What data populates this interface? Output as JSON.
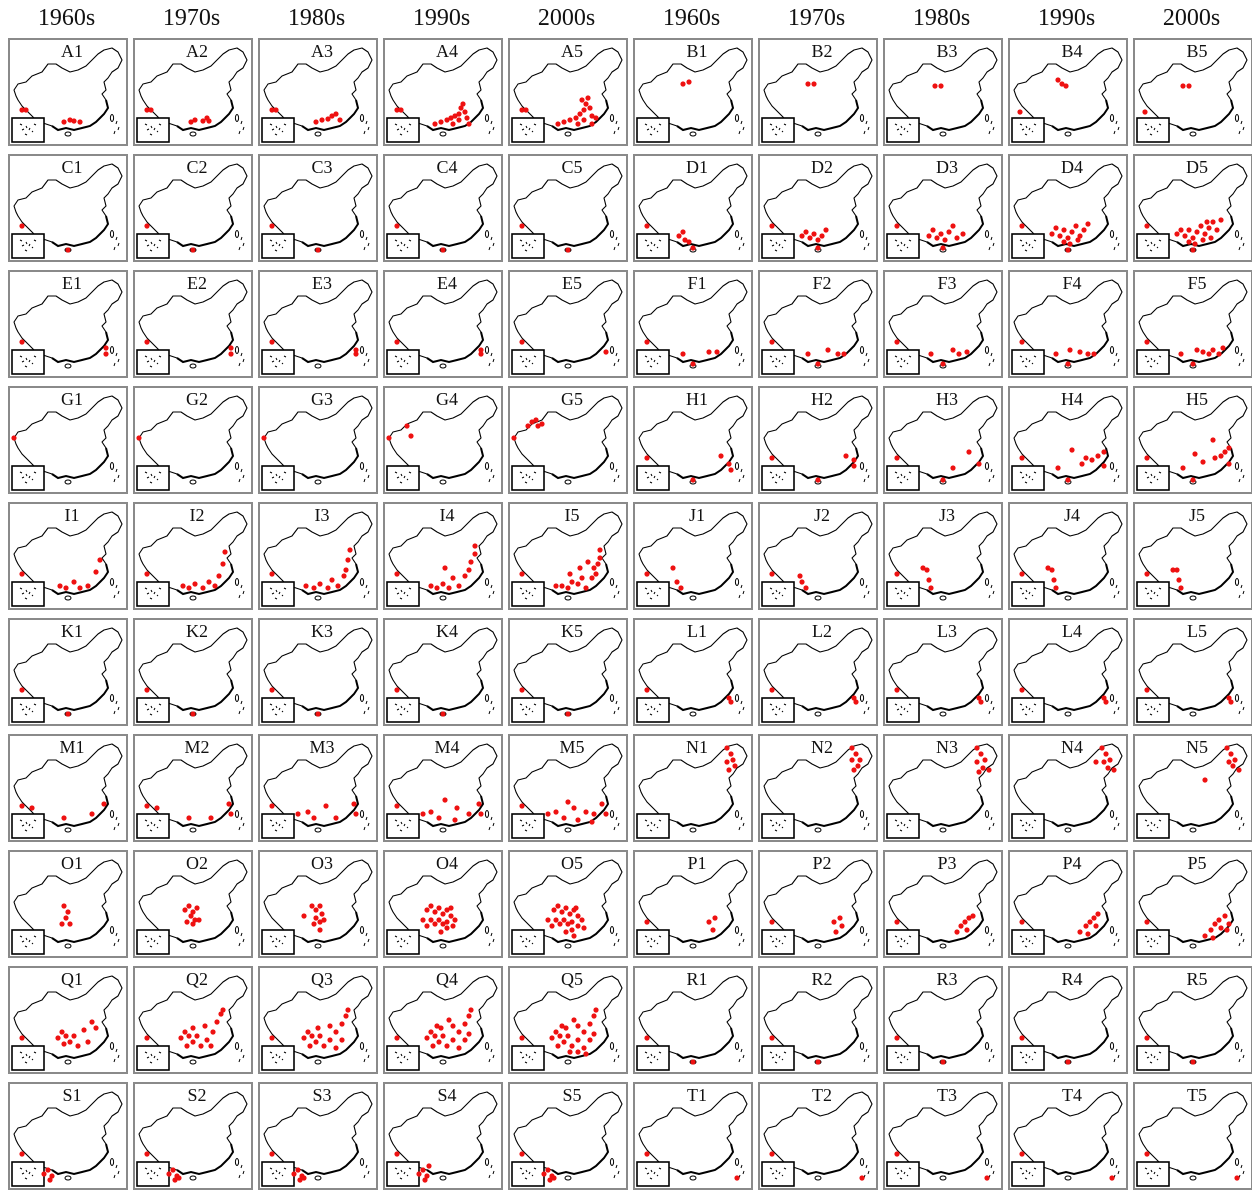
{
  "header": {
    "decades": [
      "1960s",
      "1970s",
      "1980s",
      "1990s",
      "2000s",
      "1960s",
      "1970s",
      "1980s",
      "1990s",
      "2000s"
    ]
  },
  "colors": {
    "frame": "#8a8a8a",
    "outline": "#000000",
    "dot": "#ee1111"
  },
  "icon_names": {
    "map": "china-outline-map-icon",
    "inset": "south-china-sea-inset-icon",
    "dot": "occurrence-dot-icon"
  },
  "panels": [
    [
      "A1",
      "A2",
      "A3",
      "A4",
      "A5",
      "B1",
      "B2",
      "B3",
      "B4",
      "B5"
    ],
    [
      "C1",
      "C2",
      "C3",
      "C4",
      "C5",
      "D1",
      "D2",
      "D3",
      "D4",
      "D5"
    ],
    [
      "E1",
      "E2",
      "E3",
      "E4",
      "E5",
      "F1",
      "F2",
      "F3",
      "F4",
      "F5"
    ],
    [
      "G1",
      "G2",
      "G3",
      "G4",
      "G5",
      "H1",
      "H2",
      "H3",
      "H4",
      "H5"
    ],
    [
      "I1",
      "I2",
      "I3",
      "I4",
      "I5",
      "J1",
      "J2",
      "J3",
      "J4",
      "J5"
    ],
    [
      "K1",
      "K2",
      "K3",
      "K4",
      "K5",
      "L1",
      "L2",
      "L3",
      "L4",
      "L5"
    ],
    [
      "M1",
      "M2",
      "M3",
      "M4",
      "M5",
      "N1",
      "N2",
      "N3",
      "N4",
      "N5"
    ],
    [
      "O1",
      "O2",
      "O3",
      "O4",
      "O5",
      "P1",
      "P2",
      "P3",
      "P4",
      "P5"
    ],
    [
      "Q1",
      "Q2",
      "Q3",
      "Q4",
      "Q5",
      "R1",
      "R2",
      "R3",
      "R4",
      "R5"
    ],
    [
      "S1",
      "S2",
      "S3",
      "S4",
      "S5",
      "T1",
      "T2",
      "T3",
      "T4",
      "T5"
    ]
  ]
}
